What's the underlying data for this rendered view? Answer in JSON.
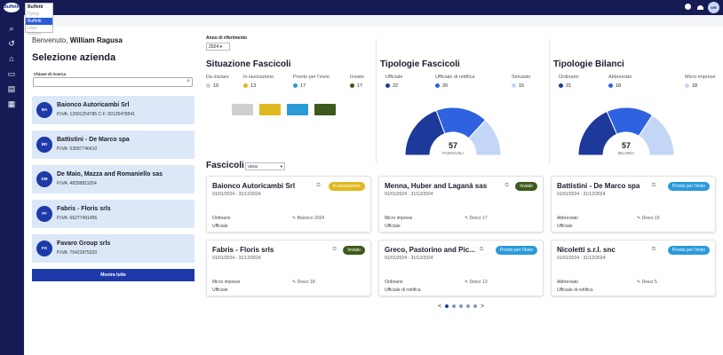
{
  "topbar": {
    "logo": "Buffetti",
    "avatar": "WR"
  },
  "switcher": {
    "current": "Buffetti",
    "options": [
      "Dylog",
      "Buffetti",
      "User bottom"
    ]
  },
  "welcome": {
    "prefix": "Benvenuto,",
    "name": "William Ragusa"
  },
  "selezione": {
    "title": "Selezione azienda",
    "search_label": "Chiave di ricerca",
    "search_value": "",
    "more": "Mostra tutte",
    "companies": [
      {
        "initials": "BA",
        "name": "Baionco Autoricambi Srl",
        "piva": "P.IVA: 12001254785  C.F: 00125478541"
      },
      {
        "initials": "BD",
        "name": "Battistini - De Marco spa",
        "piva": "P.IVA: 53587746410"
      },
      {
        "initials": "DM",
        "name": "De Maio, Mazza and Romaniello sas",
        "piva": "P.IVA: 48399811054"
      },
      {
        "initials": "FF",
        "name": "Fabris - Floris srls",
        "piva": "P.IVA: 66277491456"
      },
      {
        "initials": "FG",
        "name": "Favaro Group srls",
        "piva": "P.IVA: 75422875320"
      }
    ]
  },
  "anno": {
    "label": "Anno di riferimento",
    "value": "2024"
  },
  "situazione": {
    "title": "Situazione Fascicoli",
    "items": [
      {
        "label": "Da iniziare",
        "value": "10",
        "color": "#cfcfcf"
      },
      {
        "label": "In lavorazione",
        "value": "13",
        "color": "#e0b820"
      },
      {
        "label": "Pronto per l'invio",
        "value": "17",
        "color": "#2a9ad8"
      },
      {
        "label": "Inviato",
        "value": "17",
        "color": "#3d5a1a"
      }
    ]
  },
  "chart_data": [
    {
      "type": "pie",
      "title": "Tipologie Fascicoli",
      "total": "57",
      "center_label": "FASCICOLI",
      "categories": [
        "Ufficiale",
        "Ufficiale di rettifica",
        "Simulato"
      ],
      "values": [
        22,
        20,
        15
      ],
      "colors": [
        "#1d3a9a",
        "#2e62e0",
        "#c4d6f6"
      ]
    },
    {
      "type": "pie",
      "title": "Tipologie Bilanci",
      "total": "57",
      "center_label": "BILANCI",
      "categories": [
        "Ordinario",
        "Abbreviato",
        "Micro imprese"
      ],
      "values": [
        21,
        18,
        18
      ],
      "colors": [
        "#1d3a9a",
        "#2e62e0",
        "#c4d6f6"
      ]
    }
  ],
  "fascicoli": {
    "title": "Fascicoli",
    "filter": "Ultimi",
    "cards": [
      {
        "name": "Baionco Autoricambi Srl",
        "period": "01/01/2024 - 31/12/2024",
        "tipo": "Ordinario",
        "stato": "Ufficiale",
        "desc": "Baionco 2024",
        "badge": "In lavorazione",
        "color": "#e0b820"
      },
      {
        "name": "Menna, Huber and Laganà sas",
        "period": "01/01/2024 - 31/12/2024",
        "tipo": "Micro imprese",
        "stato": "Ufficiale",
        "desc": "Descr 17",
        "badge": "Inviato",
        "color": "#3d5a1a"
      },
      {
        "name": "Battistini - De Marco spa",
        "period": "01/01/2024 - 31/12/2024",
        "tipo": "Abbreviato",
        "stato": "Ufficiale",
        "desc": "Descr 15",
        "badge": "Pronto per l'invio",
        "color": "#2a9ad8"
      },
      {
        "name": "Fabris - Floris srls",
        "period": "01/01/2024 - 31/12/2024",
        "tipo": "Micro imprese",
        "stato": "Ufficiale",
        "desc": "Descr 18",
        "badge": "Inviato",
        "color": "#3d5a1a"
      },
      {
        "name": "Greco, Pastorino and Pic...",
        "period": "01/01/2024 - 31/12/2024",
        "tipo": "Ordinario",
        "stato": "Ufficiale di rettifica",
        "desc": "Descr 13",
        "badge": "Pronto per l'invio",
        "color": "#2a9ad8"
      },
      {
        "name": "Nicoletti s.r.l. snc",
        "period": "01/01/2024 - 31/12/2024",
        "tipo": "Abbreviato",
        "stato": "Ufficiale di rettifica",
        "desc": "Descr 5",
        "badge": "Pronto per l'invio",
        "color": "#2a9ad8"
      }
    ]
  },
  "pagination": {
    "prev": "<",
    "next": ">",
    "pages": 5,
    "current": 1
  }
}
